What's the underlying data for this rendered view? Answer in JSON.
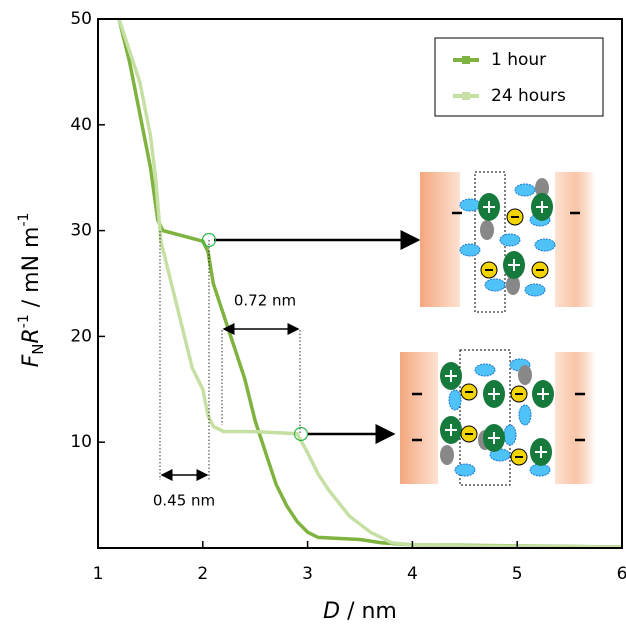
{
  "chart_data": {
    "type": "line",
    "x_label": [
      "D",
      " / nm"
    ],
    "y_label": [
      "F",
      "N",
      "R",
      "-1",
      " / mN m",
      "-1"
    ],
    "xlim": [
      1,
      6
    ],
    "xticks": [
      1,
      2,
      3,
      4,
      5,
      6
    ],
    "ylim": [
      0,
      50
    ],
    "yticks": [
      10,
      20,
      30,
      40,
      50
    ],
    "legend": "upper right",
    "annotations": [
      "0.72 nm",
      "0.45 nm"
    ],
    "series": [
      {
        "name": "1 hour",
        "color": "#7fb33f",
        "x": [
          1.2,
          1.3,
          1.4,
          1.5,
          1.57,
          1.62,
          2.0,
          2.05,
          2.1,
          2.2,
          2.3,
          2.4,
          2.5,
          2.6,
          2.7,
          2.8,
          2.9,
          3.0,
          3.1,
          3.5,
          3.7,
          4.0,
          5.0,
          6.0
        ],
        "values": [
          50,
          46,
          41,
          36,
          31,
          30,
          29,
          28,
          25,
          22,
          19,
          16,
          12,
          9,
          6,
          4,
          2.5,
          1.5,
          1,
          0.8,
          0.5,
          0.3,
          0.2,
          0.1
        ]
      },
      {
        "name": "24 hours",
        "color": "#c6e0a4",
        "x": [
          1.2,
          1.3,
          1.4,
          1.5,
          1.55,
          1.6,
          1.7,
          1.8,
          1.9,
          2.0,
          2.05,
          2.1,
          2.2,
          2.5,
          2.9,
          3.0,
          3.1,
          3.2,
          3.4,
          3.6,
          3.8,
          4.0,
          4.5,
          6.0
        ],
        "values": [
          50,
          47,
          44,
          39,
          35,
          29,
          25,
          21,
          17,
          15,
          12.5,
          11.5,
          11,
          11,
          10.8,
          9,
          7,
          5.5,
          3,
          1.5,
          0.5,
          0.3,
          0.2,
          0.1
        ]
      }
    ]
  }
}
